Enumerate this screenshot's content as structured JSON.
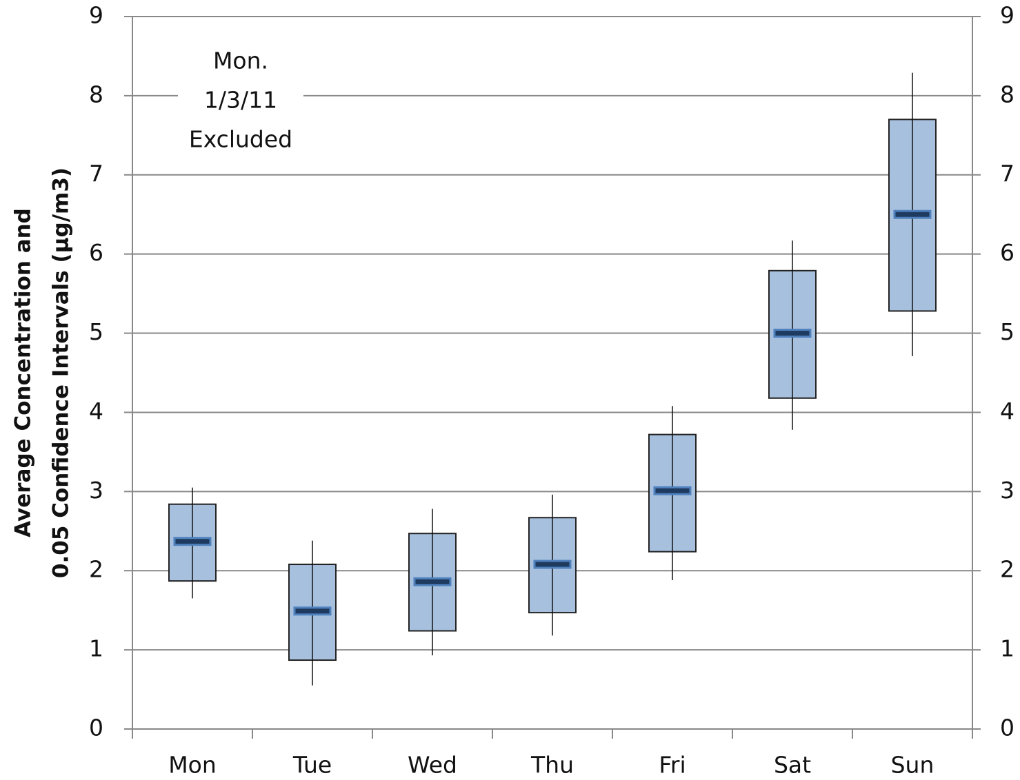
{
  "chart_data": {
    "type": "box",
    "ylabel": [
      "Average Concentration and",
      "0.05 Confidence Intervals (µg/m3)"
    ],
    "annotation": [
      "Mon.",
      "1/3/11",
      "Excluded"
    ],
    "categories": [
      "Mon",
      "Tue",
      "Wed",
      "Thu",
      "Fri",
      "Sat",
      "Sun"
    ],
    "means": [
      2.37,
      1.49,
      1.86,
      2.08,
      3.01,
      5.0,
      6.5
    ],
    "box_low": [
      1.87,
      0.87,
      1.24,
      1.47,
      2.24,
      4.18,
      5.28
    ],
    "box_high": [
      2.84,
      2.08,
      2.47,
      2.67,
      3.72,
      5.79,
      7.7
    ],
    "whisker_low": [
      1.65,
      0.55,
      0.93,
      1.18,
      1.88,
      3.78,
      4.71
    ],
    "whisker_high": [
      3.05,
      2.38,
      2.78,
      2.96,
      4.08,
      6.17,
      8.29
    ],
    "box_color": "#a7c0de",
    "mean_color": "#1f3a5f",
    "mean_outline": "#4f81bd",
    "ylim": [
      0,
      9
    ],
    "yticks": [
      0,
      1,
      2,
      3,
      4,
      5,
      6,
      7,
      8,
      9
    ],
    "y2lim": [
      0,
      9
    ],
    "y2ticks": [
      0,
      1,
      2,
      3,
      4,
      5,
      6,
      7,
      8,
      9
    ],
    "grid": true
  }
}
